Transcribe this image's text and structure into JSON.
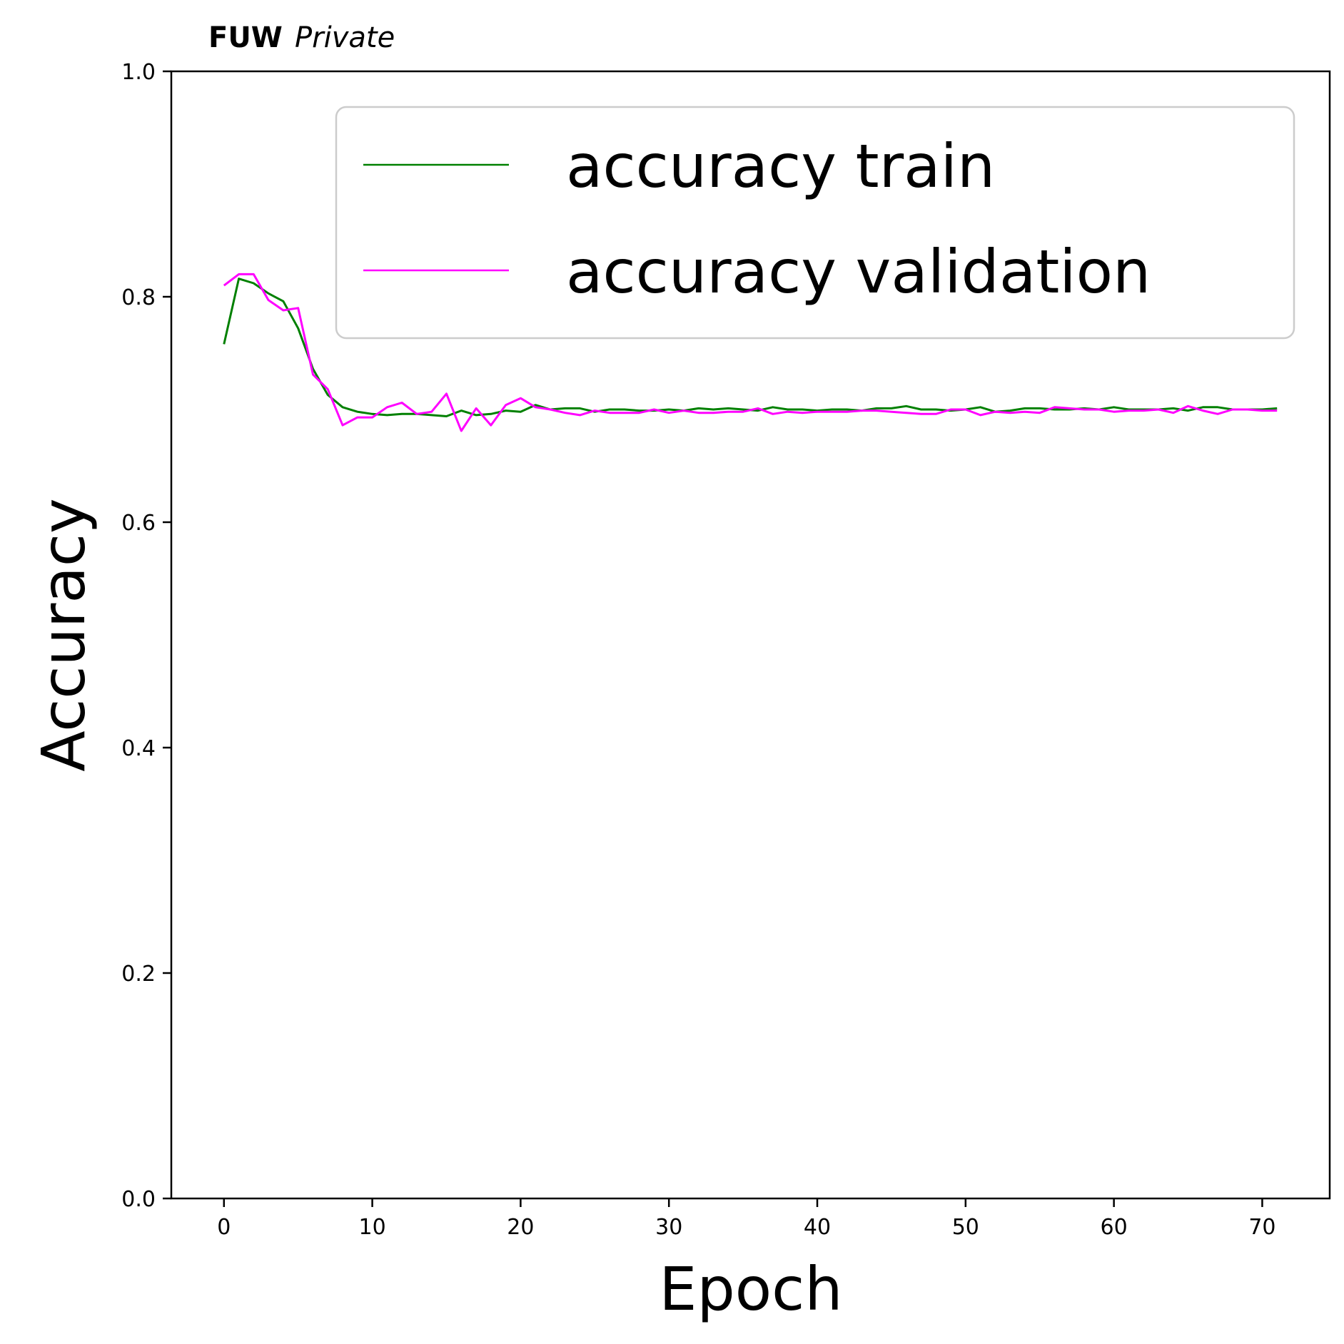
{
  "chart_data": {
    "type": "line",
    "title_bold": "FUW",
    "title_italic": "Private",
    "xlabel": "Epoch",
    "ylabel": "Accuracy",
    "xlim": [
      -3.55,
      74.55
    ],
    "ylim": [
      0.0,
      1.0
    ],
    "xticks": [
      0,
      10,
      20,
      30,
      40,
      50,
      60,
      70
    ],
    "yticks": [
      0.0,
      0.2,
      0.4,
      0.6,
      0.8,
      1.0
    ],
    "ytick_labels": [
      "0.0",
      "0.2",
      "0.4",
      "0.6",
      "0.8",
      "1.0"
    ],
    "grid": false,
    "legend_position": "upper-right",
    "series": [
      {
        "name": "accuracy train",
        "color": "#008000",
        "x": [
          0,
          1,
          2,
          3,
          4,
          5,
          6,
          7,
          8,
          9,
          10,
          11,
          12,
          13,
          14,
          15,
          16,
          17,
          18,
          19,
          20,
          21,
          22,
          23,
          24,
          25,
          26,
          27,
          28,
          29,
          30,
          31,
          32,
          33,
          34,
          35,
          36,
          37,
          38,
          39,
          40,
          41,
          42,
          43,
          44,
          45,
          46,
          47,
          48,
          49,
          50,
          51,
          52,
          53,
          54,
          55,
          56,
          57,
          58,
          59,
          60,
          61,
          62,
          63,
          64,
          65,
          66,
          67,
          68,
          69,
          70,
          71
        ],
        "values": [
          0.758,
          0.816,
          0.812,
          0.803,
          0.796,
          0.772,
          0.736,
          0.713,
          0.702,
          0.698,
          0.696,
          0.695,
          0.696,
          0.696,
          0.695,
          0.694,
          0.699,
          0.695,
          0.696,
          0.699,
          0.698,
          0.704,
          0.7,
          0.701,
          0.701,
          0.698,
          0.7,
          0.7,
          0.699,
          0.699,
          0.7,
          0.699,
          0.701,
          0.7,
          0.701,
          0.7,
          0.699,
          0.702,
          0.7,
          0.7,
          0.699,
          0.7,
          0.7,
          0.699,
          0.701,
          0.701,
          0.703,
          0.7,
          0.7,
          0.699,
          0.7,
          0.702,
          0.698,
          0.699,
          0.701,
          0.701,
          0.7,
          0.7,
          0.701,
          0.7,
          0.702,
          0.7,
          0.7,
          0.7,
          0.701,
          0.699,
          0.702,
          0.702,
          0.7,
          0.7,
          0.7,
          0.701
        ]
      },
      {
        "name": "accuracy validation",
        "color": "#ff00ff",
        "x": [
          0,
          1,
          2,
          3,
          4,
          5,
          6,
          7,
          8,
          9,
          10,
          11,
          12,
          13,
          14,
          15,
          16,
          17,
          18,
          19,
          20,
          21,
          22,
          23,
          24,
          25,
          26,
          27,
          28,
          29,
          30,
          31,
          32,
          33,
          34,
          35,
          36,
          37,
          38,
          39,
          40,
          41,
          42,
          43,
          44,
          45,
          46,
          47,
          48,
          49,
          50,
          51,
          52,
          53,
          54,
          55,
          56,
          57,
          58,
          59,
          60,
          61,
          62,
          63,
          64,
          65,
          66,
          67,
          68,
          69,
          70,
          71
        ],
        "values": [
          0.81,
          0.82,
          0.82,
          0.797,
          0.788,
          0.79,
          0.731,
          0.718,
          0.686,
          0.693,
          0.693,
          0.702,
          0.706,
          0.696,
          0.698,
          0.714,
          0.681,
          0.701,
          0.686,
          0.704,
          0.71,
          0.702,
          0.7,
          0.697,
          0.695,
          0.699,
          0.697,
          0.697,
          0.697,
          0.7,
          0.697,
          0.699,
          0.697,
          0.697,
          0.698,
          0.698,
          0.701,
          0.696,
          0.698,
          0.697,
          0.698,
          0.698,
          0.698,
          0.699,
          0.699,
          0.698,
          0.697,
          0.696,
          0.696,
          0.7,
          0.7,
          0.695,
          0.698,
          0.697,
          0.698,
          0.697,
          0.702,
          0.701,
          0.7,
          0.7,
          0.698,
          0.699,
          0.699,
          0.7,
          0.697,
          0.703,
          0.699,
          0.696,
          0.7,
          0.7,
          0.699,
          0.699
        ]
      }
    ]
  }
}
